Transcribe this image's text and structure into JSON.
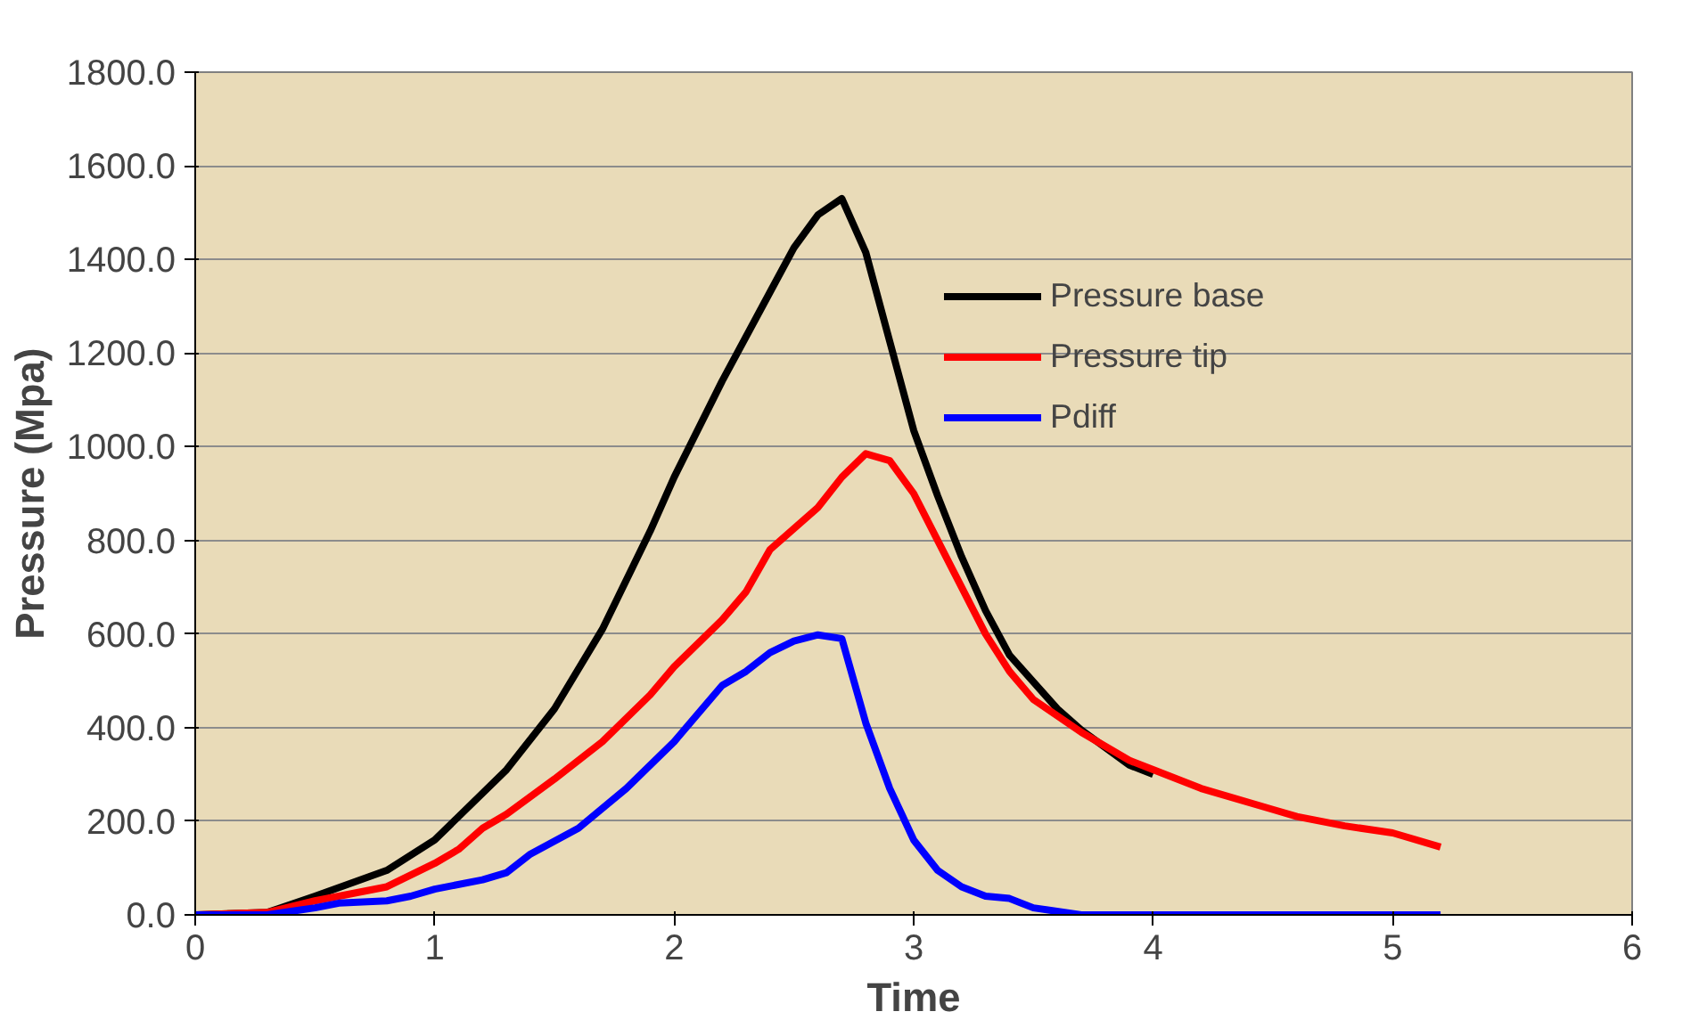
{
  "chart_data": {
    "type": "line",
    "xlabel": "Time",
    "ylabel": "Pressure (Mpa)",
    "xlim": [
      0,
      6
    ],
    "xticks": [
      0,
      1,
      2,
      3,
      4,
      5,
      6
    ],
    "ylim": [
      0,
      1800
    ],
    "yticks": [
      {
        "value": 0,
        "label": "0.0"
      },
      {
        "value": 200,
        "label": "200.0"
      },
      {
        "value": 400,
        "label": "400.0"
      },
      {
        "value": 600,
        "label": "600.0"
      },
      {
        "value": 800,
        "label": "800.0"
      },
      {
        "value": 1000,
        "label": "1000.0"
      },
      {
        "value": 1200,
        "label": "1200.0"
      },
      {
        "value": 1400,
        "label": "1400.0"
      },
      {
        "value": 1600,
        "label": "1600.0"
      },
      {
        "value": 1800,
        "label": "1800.0"
      }
    ],
    "grid": "y",
    "legend": "top right",
    "marker": "none",
    "line_style": "solid",
    "series": [
      {
        "name": "Pressure base",
        "color": "#000000",
        "x": [
          0,
          0.3,
          0.5,
          0.8,
          1.0,
          1.3,
          1.5,
          1.7,
          1.9,
          2.0,
          2.2,
          2.4,
          2.5,
          2.6,
          2.7,
          2.8,
          2.9,
          3.0,
          3.1,
          3.2,
          3.3,
          3.4,
          3.6,
          3.7,
          3.9,
          4.0
        ],
        "values": [
          0,
          5,
          40,
          95,
          160,
          310,
          440,
          610,
          820,
          935,
          1140,
          1330,
          1425,
          1495,
          1530,
          1415,
          1225,
          1035,
          895,
          765,
          650,
          555,
          440,
          395,
          320,
          300
        ]
      },
      {
        "name": "Pressure tip",
        "color": "#ff0000",
        "x": [
          0,
          0.3,
          0.5,
          0.8,
          1.0,
          1.1,
          1.2,
          1.3,
          1.5,
          1.7,
          1.9,
          2.0,
          2.2,
          2.3,
          2.4,
          2.6,
          2.7,
          2.8,
          2.9,
          3.0,
          3.1,
          3.2,
          3.3,
          3.4,
          3.5,
          3.7,
          3.9,
          4.0,
          4.2,
          4.5,
          4.6,
          4.8,
          5.0,
          5.2
        ],
        "values": [
          0,
          5,
          30,
          60,
          110,
          140,
          185,
          215,
          290,
          370,
          470,
          530,
          630,
          690,
          780,
          870,
          935,
          985,
          970,
          900,
          800,
          700,
          600,
          520,
          460,
          390,
          330,
          310,
          270,
          225,
          210,
          190,
          175,
          145
        ]
      },
      {
        "name": "Pdiff",
        "color": "#0000ff",
        "x": [
          0,
          0.3,
          0.5,
          0.6,
          0.8,
          0.9,
          1.0,
          1.2,
          1.3,
          1.4,
          1.6,
          1.8,
          2.0,
          2.2,
          2.3,
          2.4,
          2.5,
          2.6,
          2.7,
          2.8,
          2.9,
          3.0,
          3.1,
          3.2,
          3.3,
          3.4,
          3.5,
          3.7,
          5.2
        ],
        "values": [
          0,
          0,
          15,
          25,
          30,
          40,
          55,
          75,
          90,
          130,
          185,
          270,
          370,
          490,
          520,
          560,
          585,
          598,
          590,
          410,
          270,
          160,
          95,
          60,
          40,
          35,
          15,
          0,
          0
        ]
      }
    ]
  }
}
